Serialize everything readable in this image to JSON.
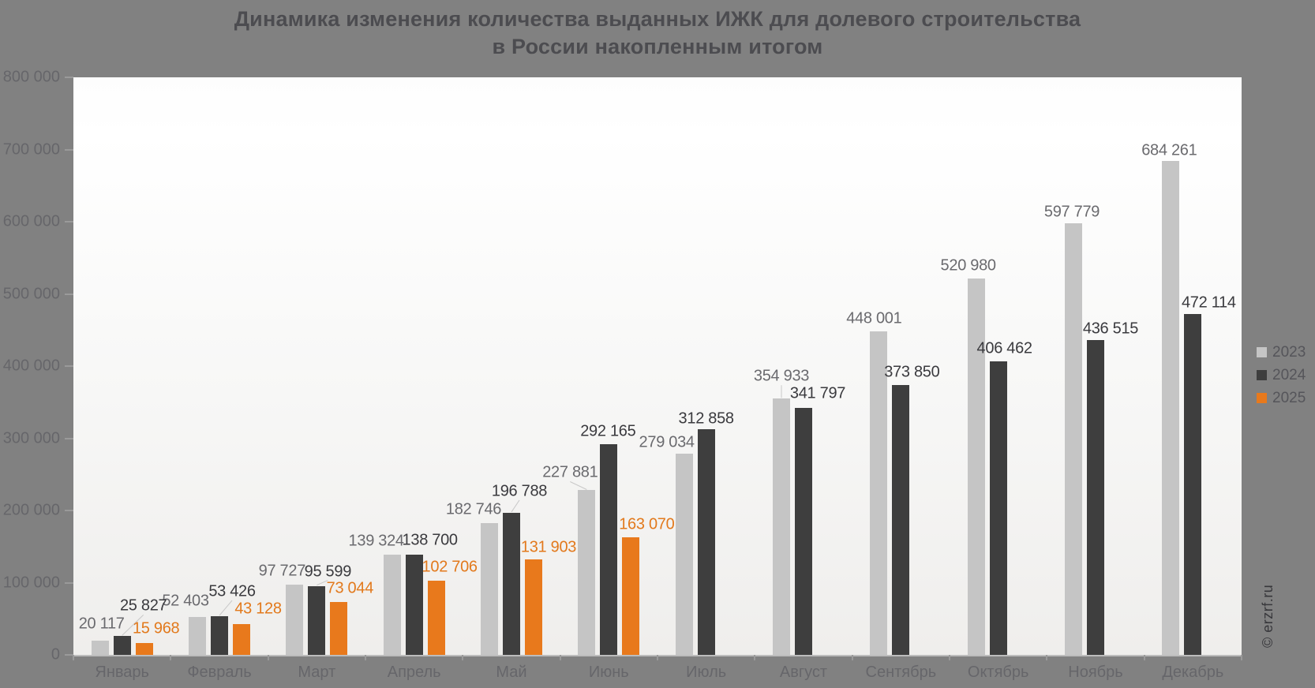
{
  "title": {
    "line1": "Динамика изменения количества выданных ИЖК для долевого строительства",
    "line2": "в России накопленным итогом"
  },
  "watermark": "© erzrf.ru",
  "colors": {
    "background": "#818181",
    "title_text": "#4c4c50",
    "axis_text": "#66666a",
    "axis_line": "#bdbdbd",
    "tick_mark": "#9a9a9a",
    "leader_line": "#c8c8c8",
    "legend_text": "#55555a",
    "watermark_text": "#38383c"
  },
  "chart_data": {
    "type": "bar",
    "title": "Динамика изменения количества выданных ИЖК для долевого строительства в России накопленным итогом",
    "categories": [
      "Январь",
      "Февраль",
      "Март",
      "Апрель",
      "Май",
      "Июнь",
      "Июль",
      "Август",
      "Сентябрь",
      "Октябрь",
      "Ноябрь",
      "Декабрь"
    ],
    "series": [
      {
        "name": "2023",
        "color": "#c5c5c5",
        "label_color": "#6a6a6e",
        "values": [
          20117,
          52403,
          97727,
          139324,
          182746,
          227881,
          279034,
          354933,
          448001,
          520980,
          597779,
          684261
        ]
      },
      {
        "name": "2024",
        "color": "#3e3e3e",
        "label_color": "#3a3a3e",
        "values": [
          25827,
          53426,
          95599,
          138700,
          196788,
          292165,
          312858,
          341797,
          373850,
          406462,
          436515,
          472114
        ]
      },
      {
        "name": "2025",
        "color": "#e8791c",
        "label_color": "#e2791c",
        "values": [
          15968,
          43128,
          73044,
          102706,
          131903,
          163070,
          null,
          null,
          null,
          null,
          null,
          null
        ]
      }
    ],
    "ylim": [
      0,
      800000
    ],
    "ytick_step": 100000,
    "ytick_labels": [
      "0",
      "100 000",
      "200 000",
      "300 000",
      "400 000",
      "500 000",
      "600 000",
      "700 000",
      "800 000"
    ],
    "grid": false,
    "legend_position": "right",
    "legend_entries": [
      "2023",
      "2024",
      "2025"
    ],
    "value_labels_shown": true
  }
}
